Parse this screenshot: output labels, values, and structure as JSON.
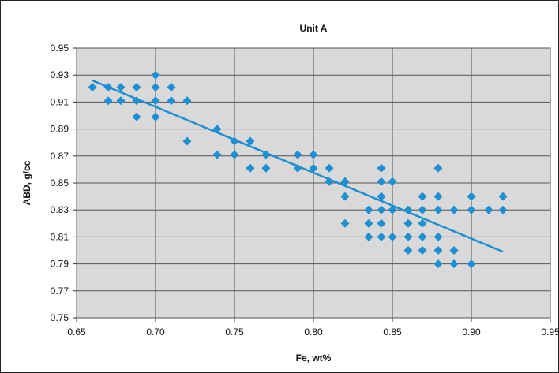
{
  "chart_data": {
    "type": "scatter",
    "title": "Unit A",
    "xlabel": "Fe, wt%",
    "ylabel": "ABD, g/cc",
    "xlim": [
      0.65,
      0.95
    ],
    "ylim": [
      0.75,
      0.95
    ],
    "x_ticks": [
      "0.65",
      "0.70",
      "0.75",
      "0.80",
      "0.85",
      "0.90",
      "0.95"
    ],
    "y_ticks": [
      "0.95",
      "0.93",
      "0.91",
      "0.89",
      "0.87",
      "0.85",
      "0.83",
      "0.81",
      "0.79",
      "0.77",
      "0.75"
    ],
    "grid": true,
    "legend": "none",
    "marker_color": "#1e8fd2",
    "trendline_color": "#1e8fd2",
    "grid_color": "#555555",
    "plot_background": "#d9d9d9",
    "points": [
      [
        0.66,
        0.921
      ],
      [
        0.67,
        0.921
      ],
      [
        0.67,
        0.911
      ],
      [
        0.678,
        0.921
      ],
      [
        0.678,
        0.911
      ],
      [
        0.688,
        0.921
      ],
      [
        0.688,
        0.911
      ],
      [
        0.688,
        0.899
      ],
      [
        0.7,
        0.93
      ],
      [
        0.7,
        0.921
      ],
      [
        0.7,
        0.911
      ],
      [
        0.7,
        0.899
      ],
      [
        0.71,
        0.921
      ],
      [
        0.71,
        0.911
      ],
      [
        0.72,
        0.911
      ],
      [
        0.72,
        0.881
      ],
      [
        0.739,
        0.89
      ],
      [
        0.739,
        0.871
      ],
      [
        0.75,
        0.881
      ],
      [
        0.75,
        0.871
      ],
      [
        0.76,
        0.881
      ],
      [
        0.76,
        0.861
      ],
      [
        0.77,
        0.871
      ],
      [
        0.77,
        0.861
      ],
      [
        0.79,
        0.871
      ],
      [
        0.79,
        0.861
      ],
      [
        0.8,
        0.871
      ],
      [
        0.8,
        0.861
      ],
      [
        0.81,
        0.861
      ],
      [
        0.81,
        0.851
      ],
      [
        0.82,
        0.851
      ],
      [
        0.82,
        0.84
      ],
      [
        0.82,
        0.82
      ],
      [
        0.835,
        0.83
      ],
      [
        0.835,
        0.82
      ],
      [
        0.835,
        0.81
      ],
      [
        0.843,
        0.861
      ],
      [
        0.843,
        0.851
      ],
      [
        0.843,
        0.84
      ],
      [
        0.843,
        0.83
      ],
      [
        0.843,
        0.82
      ],
      [
        0.843,
        0.81
      ],
      [
        0.85,
        0.851
      ],
      [
        0.85,
        0.83
      ],
      [
        0.85,
        0.81
      ],
      [
        0.86,
        0.83
      ],
      [
        0.86,
        0.82
      ],
      [
        0.86,
        0.81
      ],
      [
        0.86,
        0.8
      ],
      [
        0.869,
        0.84
      ],
      [
        0.869,
        0.83
      ],
      [
        0.869,
        0.82
      ],
      [
        0.869,
        0.81
      ],
      [
        0.869,
        0.8
      ],
      [
        0.879,
        0.861
      ],
      [
        0.879,
        0.84
      ],
      [
        0.879,
        0.83
      ],
      [
        0.879,
        0.81
      ],
      [
        0.879,
        0.8
      ],
      [
        0.879,
        0.79
      ],
      [
        0.889,
        0.83
      ],
      [
        0.889,
        0.8
      ],
      [
        0.889,
        0.79
      ],
      [
        0.9,
        0.84
      ],
      [
        0.9,
        0.83
      ],
      [
        0.9,
        0.79
      ],
      [
        0.911,
        0.83
      ],
      [
        0.92,
        0.84
      ],
      [
        0.92,
        0.83
      ]
    ],
    "trendline": {
      "x": [
        0.66,
        0.92
      ],
      "y": [
        0.926,
        0.799
      ]
    }
  }
}
